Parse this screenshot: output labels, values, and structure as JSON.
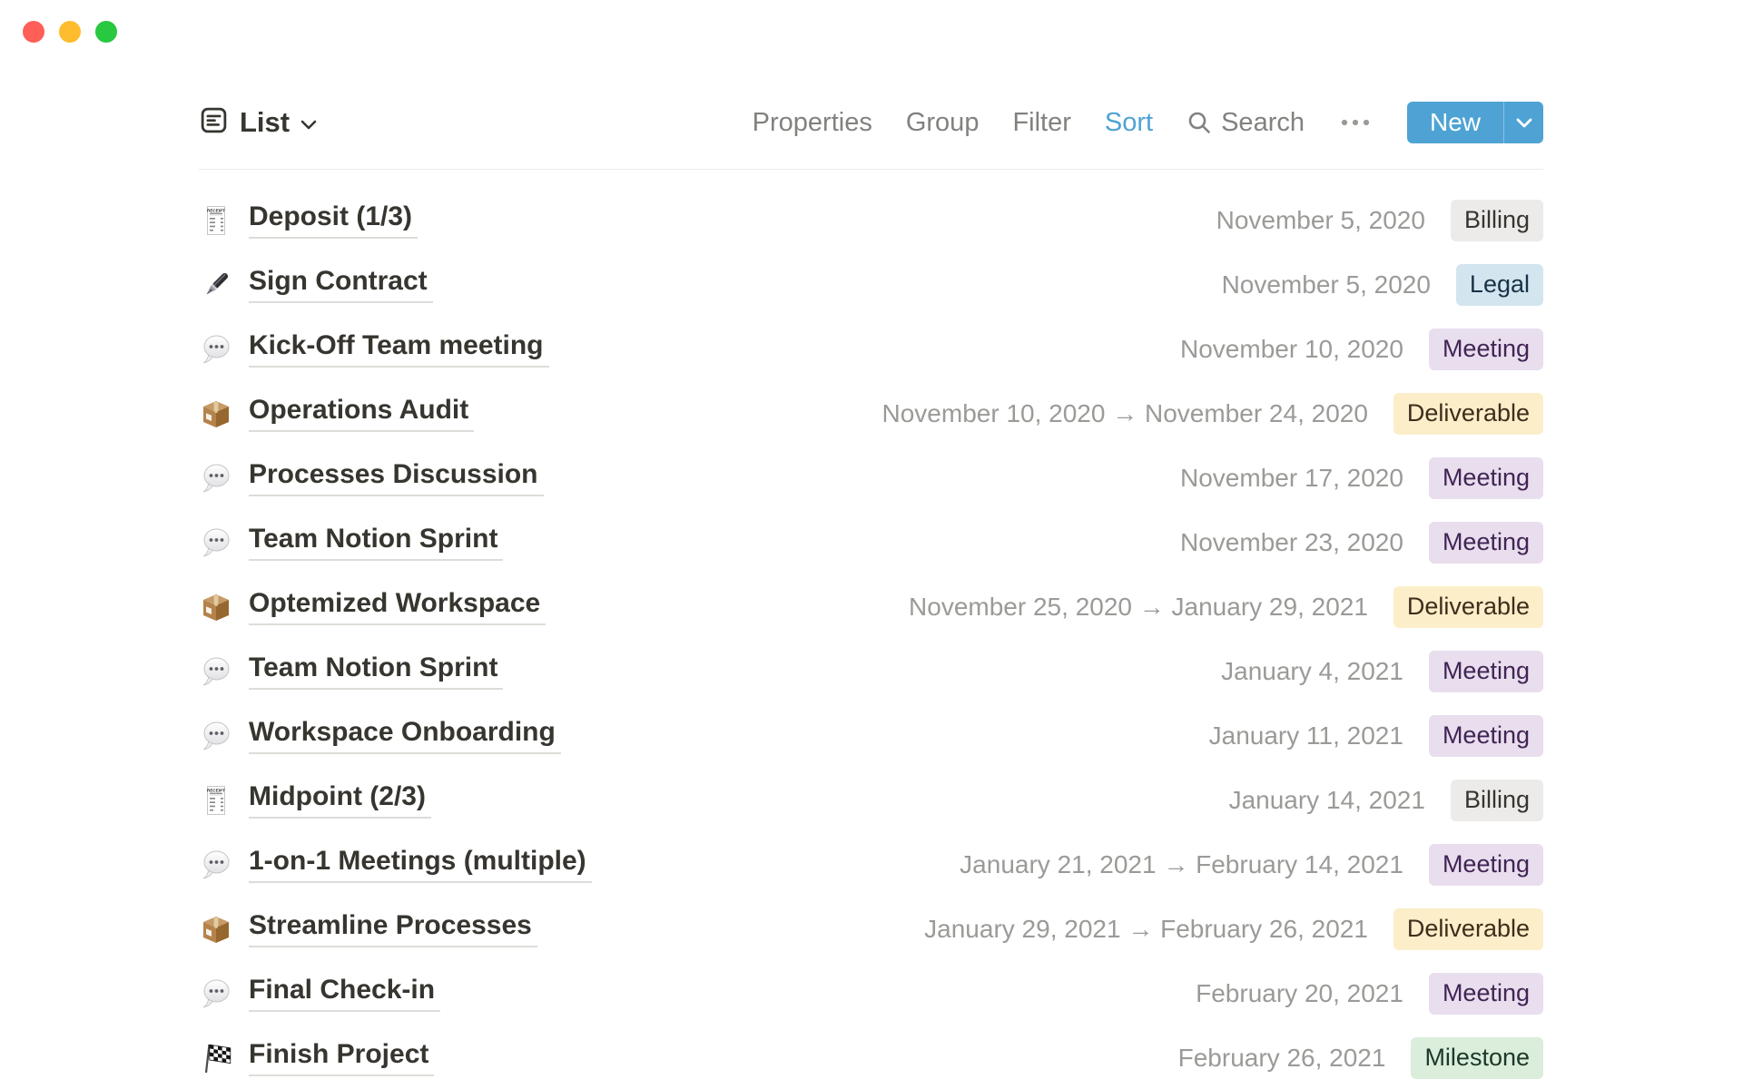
{
  "window": {
    "traffic_lights": [
      {
        "name": "close",
        "color": "#FF5F57"
      },
      {
        "name": "minimize",
        "color": "#FEBC2E"
      },
      {
        "name": "zoom",
        "color": "#28C840"
      }
    ]
  },
  "toolbar": {
    "view_label": "List",
    "menu_items": [
      {
        "label": "Properties",
        "active": false
      },
      {
        "label": "Group",
        "active": false
      },
      {
        "label": "Filter",
        "active": false
      },
      {
        "label": "Sort",
        "active": true
      }
    ],
    "search_label": "Search",
    "new_button_label": "New"
  },
  "colors": {
    "accent_blue": "#4EA3D4",
    "tag_palette": {
      "gray": {
        "bg": "#ECEBE9",
        "text": "#37352F"
      },
      "blue": {
        "bg": "#D3E5EF",
        "text": "#183347"
      },
      "purple": {
        "bg": "#E8DEEE",
        "text": "#412454"
      },
      "yellow": {
        "bg": "#FBEEC9",
        "text": "#402C1B"
      },
      "green": {
        "bg": "#DBEDDB",
        "text": "#1C3829"
      }
    }
  },
  "list": {
    "items": [
      {
        "icon": "receipt",
        "title": "Deposit (1/3)",
        "date": "November 5, 2020",
        "tag": "Billing",
        "tag_color": "gray"
      },
      {
        "icon": "pen",
        "title": "Sign Contract",
        "date": "November 5, 2020",
        "tag": "Legal",
        "tag_color": "blue"
      },
      {
        "icon": "speech",
        "title": "Kick-Off Team meeting",
        "date": "November 10, 2020",
        "tag": "Meeting",
        "tag_color": "purple"
      },
      {
        "icon": "package",
        "title": "Operations Audit",
        "date": "November 10, 2020 → November 24, 2020",
        "tag": "Deliverable",
        "tag_color": "yellow"
      },
      {
        "icon": "speech",
        "title": "Processes Discussion",
        "date": "November 17, 2020",
        "tag": "Meeting",
        "tag_color": "purple"
      },
      {
        "icon": "speech",
        "title": "Team Notion Sprint",
        "date": "November 23, 2020",
        "tag": "Meeting",
        "tag_color": "purple"
      },
      {
        "icon": "package",
        "title": "Optemized Workspace",
        "date": "November 25, 2020 → January 29, 2021",
        "tag": "Deliverable",
        "tag_color": "yellow"
      },
      {
        "icon": "speech",
        "title": "Team Notion Sprint",
        "date": "January 4, 2021",
        "tag": "Meeting",
        "tag_color": "purple"
      },
      {
        "icon": "speech",
        "title": "Workspace Onboarding",
        "date": "January 11, 2021",
        "tag": "Meeting",
        "tag_color": "purple"
      },
      {
        "icon": "receipt",
        "title": "Midpoint (2/3)",
        "date": "January 14, 2021",
        "tag": "Billing",
        "tag_color": "gray"
      },
      {
        "icon": "speech",
        "title": "1-on-1 Meetings (multiple)",
        "date": "January 21, 2021 → February 14, 2021",
        "tag": "Meeting",
        "tag_color": "purple"
      },
      {
        "icon": "package",
        "title": "Streamline Processes",
        "date": "January 29, 2021 → February 26, 2021",
        "tag": "Deliverable",
        "tag_color": "yellow"
      },
      {
        "icon": "speech",
        "title": "Final Check-in",
        "date": "February 20, 2021",
        "tag": "Meeting",
        "tag_color": "purple"
      },
      {
        "icon": "flag",
        "title": "Finish Project",
        "date": "February 26, 2021",
        "tag": "Milestone",
        "tag_color": "green"
      }
    ]
  }
}
